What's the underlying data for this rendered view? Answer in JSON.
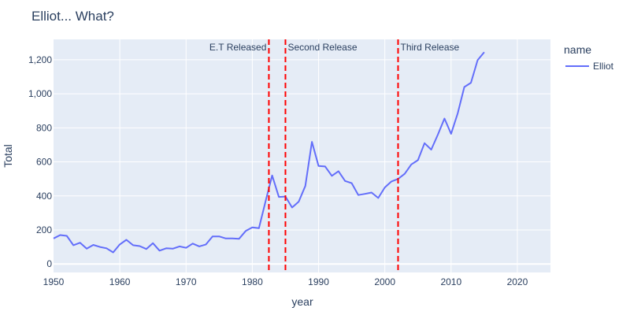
{
  "chart_data": {
    "type": "line",
    "title": "Elliot... What?",
    "xlabel": "year",
    "ylabel": "Total",
    "xlim": [
      1950,
      2025
    ],
    "ylim": [
      -50,
      1320
    ],
    "x_ticks": [
      1950,
      1960,
      1970,
      1980,
      1990,
      2000,
      2010,
      2020
    ],
    "y_ticks": [
      0,
      200,
      400,
      600,
      800,
      1000,
      1200
    ],
    "grid": true,
    "legend": {
      "title": "name",
      "placement": "top-right"
    },
    "series": [
      {
        "name": "Elliot",
        "color": "#636efa",
        "x": [
          1950,
          1951,
          1952,
          1953,
          1954,
          1955,
          1956,
          1957,
          1958,
          1959,
          1960,
          1961,
          1962,
          1963,
          1964,
          1965,
          1966,
          1967,
          1968,
          1969,
          1970,
          1971,
          1972,
          1973,
          1974,
          1975,
          1976,
          1977,
          1978,
          1979,
          1980,
          1981,
          1982,
          1983,
          1984,
          1985,
          1986,
          1987,
          1988,
          1989,
          1990,
          1991,
          1992,
          1993,
          1994,
          1995,
          1996,
          1997,
          1998,
          1999,
          2000,
          2001,
          2002,
          2003,
          2004,
          2005,
          2006,
          2007,
          2008,
          2009,
          2010,
          2011,
          2012,
          2013,
          2014,
          2015
        ],
        "y": [
          150,
          170,
          165,
          110,
          125,
          90,
          112,
          100,
          92,
          68,
          115,
          142,
          110,
          105,
          88,
          122,
          78,
          92,
          90,
          103,
          95,
          120,
          103,
          115,
          162,
          162,
          150,
          150,
          148,
          194,
          215,
          210,
          368,
          520,
          394,
          396,
          332,
          366,
          458,
          718,
          576,
          573,
          518,
          545,
          488,
          475,
          405,
          412,
          420,
          388,
          450,
          485,
          500,
          530,
          585,
          610,
          710,
          672,
          760,
          855,
          765,
          885,
          1040,
          1065,
          1198,
          1245
        ]
      }
    ],
    "annotations": [
      {
        "x": 1982.5,
        "label": "E.T Released",
        "anchor": "right",
        "color": "#ff0000"
      },
      {
        "x": 1985,
        "label": "Second Release",
        "anchor": "left",
        "color": "#ff0000"
      },
      {
        "x": 2002,
        "label": "Third Release",
        "anchor": "left",
        "color": "#ff0000"
      }
    ]
  }
}
